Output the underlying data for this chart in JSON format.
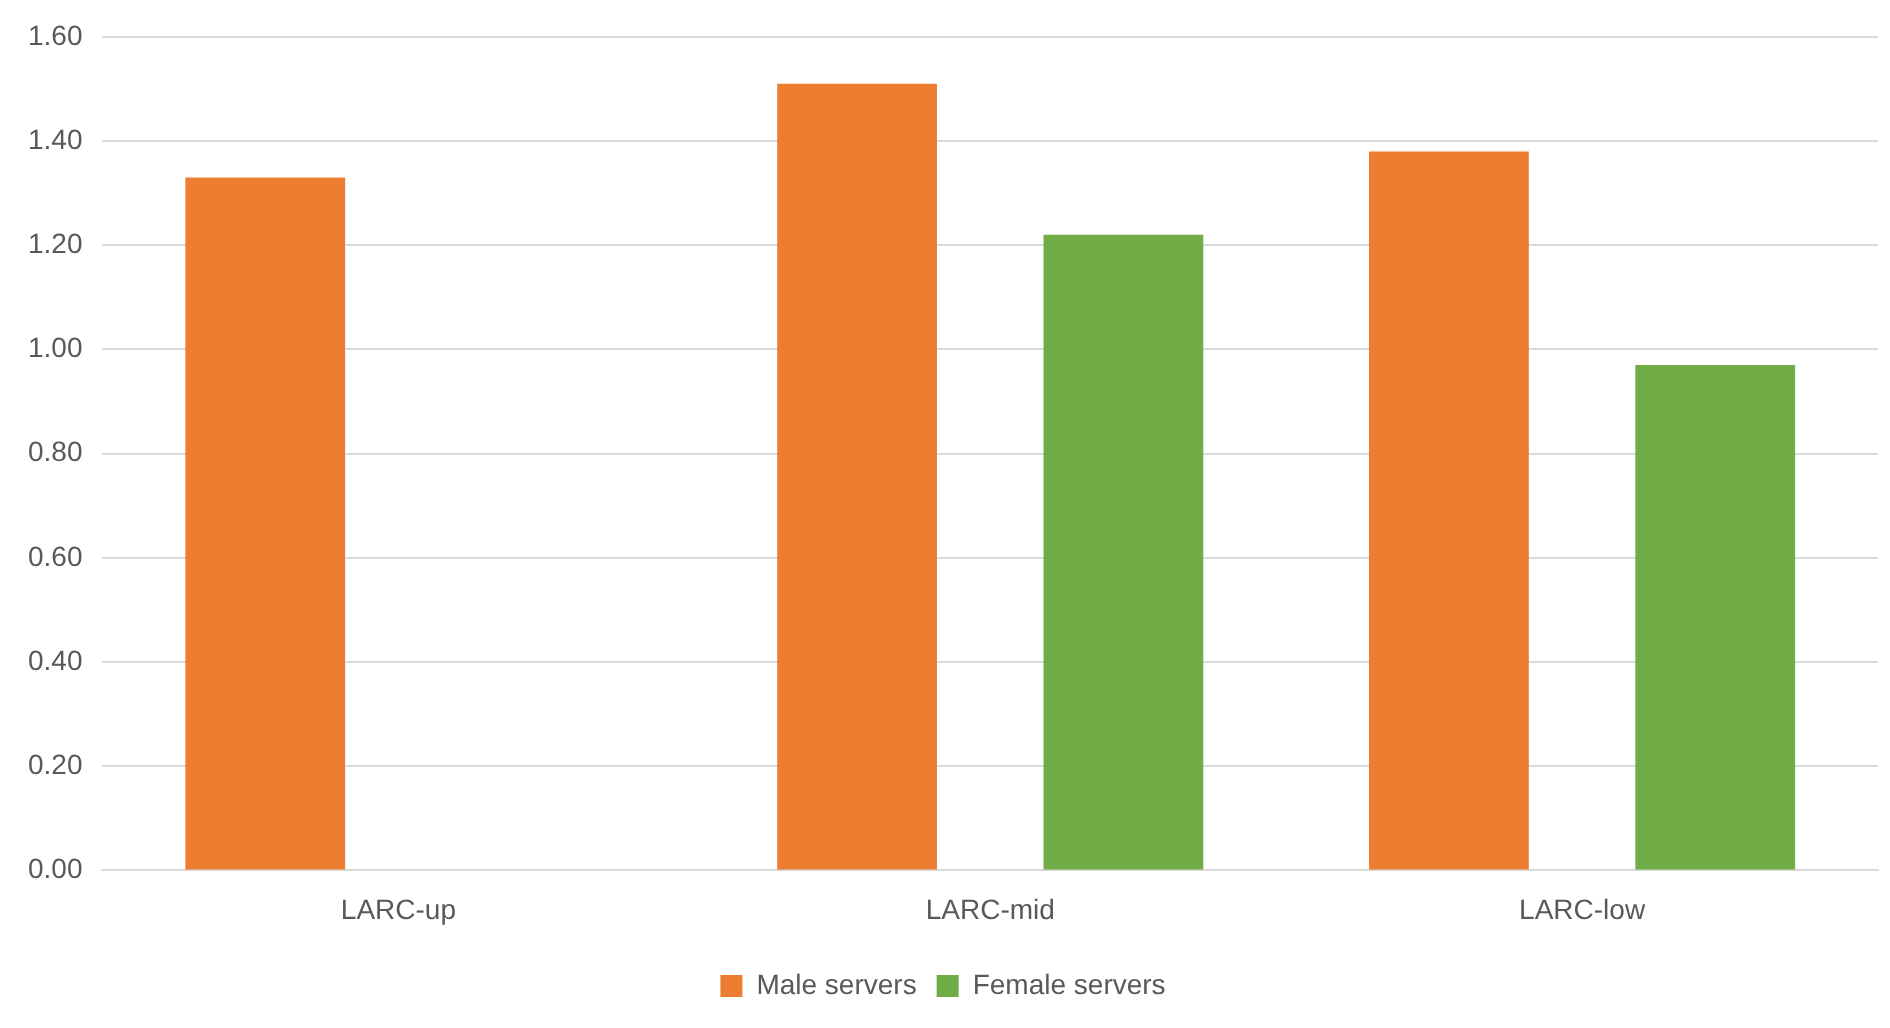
{
  "chart_data": {
    "type": "bar",
    "categories": [
      "LARC-up",
      "LARC-mid",
      "LARC-low"
    ],
    "series": [
      {
        "name": "Male servers",
        "color": "#ed7d31",
        "values": [
          1.33,
          1.51,
          1.38
        ]
      },
      {
        "name": "Female servers",
        "color": "#70ad47",
        "values": [
          null,
          1.22,
          0.97
        ]
      }
    ],
    "ylim": [
      0,
      1.6
    ],
    "yticks": [
      {
        "value": 0,
        "label": "0.00"
      },
      {
        "value": 0.2,
        "label": "0.20"
      },
      {
        "value": 0.4,
        "label": "0.40"
      },
      {
        "value": 0.6,
        "label": "0.60"
      },
      {
        "value": 0.8,
        "label": "0.80"
      },
      {
        "value": 1,
        "label": "1.00"
      },
      {
        "value": 1.2,
        "label": "1.20"
      },
      {
        "value": 1.4,
        "label": "1.40"
      },
      {
        "value": 1.6,
        "label": "1.60"
      }
    ],
    "grid": "y",
    "legend": "bottom"
  }
}
